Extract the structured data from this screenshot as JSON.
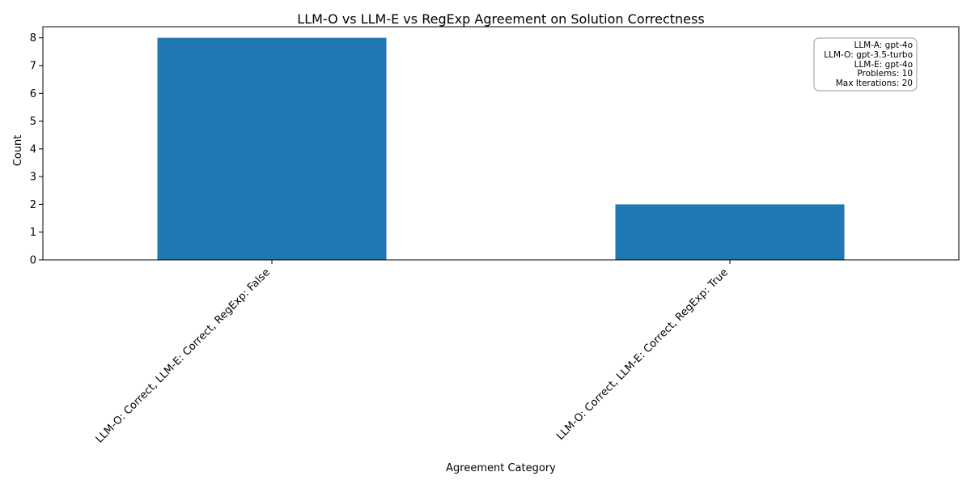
{
  "chart_data": {
    "type": "bar",
    "title": "LLM-O vs LLM-E vs RegExp Agreement on Solution Correctness",
    "xlabel": "Agreement Category",
    "ylabel": "Count",
    "categories": [
      "LLM-O: Correct, LLM-E: Correct, RegExp: False",
      "LLM-O: Correct, LLM-E: Correct, RegExp: True"
    ],
    "values": [
      8,
      2
    ],
    "ylim": [
      0,
      8.4
    ],
    "yticks": [
      0,
      1,
      2,
      3,
      4,
      5,
      6,
      7,
      8
    ],
    "bar_color": "#1f77b4",
    "grid": false,
    "legend": "none",
    "annotation": {
      "placement": "top-right",
      "lines": [
        "LLM-A: gpt-4o",
        "LLM-O: gpt-3.5-turbo",
        "LLM-E: gpt-4o",
        "Problems: 10",
        "Max Iterations: 20"
      ]
    }
  }
}
